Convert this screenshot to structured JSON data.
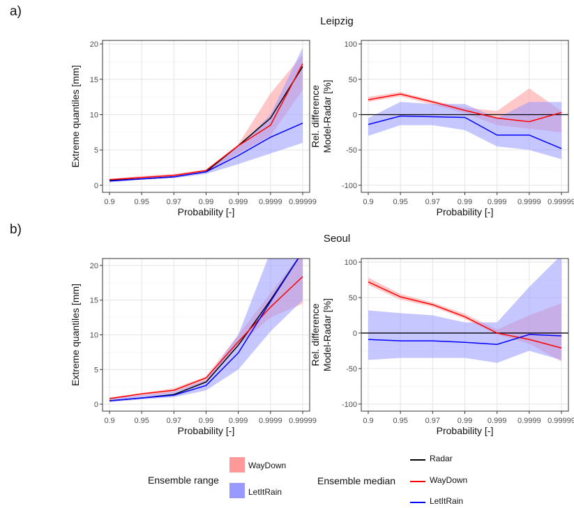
{
  "panel_labels": {
    "a": "a)",
    "b": "b)"
  },
  "titles": {
    "leipzig": "Leipzig",
    "seoul": "Seoul"
  },
  "colors": {
    "radar": "#000000",
    "waydown": "#ff0000",
    "letitrain": "#0000ff",
    "waydown_band": "#ff9999",
    "letitrain_band": "#9999ff",
    "grid": "#e6e6e6",
    "panel_border": "#333333"
  },
  "chart_data": [
    {
      "id": "leipzig_quantiles",
      "type": "line",
      "title": "Leipzig",
      "xlabel": "Probability [-]",
      "ylabel": "Extreme quantiles [mm]",
      "categories": [
        "0.9",
        "0.95",
        "0.97",
        "0.99",
        "0.999",
        "0.9999",
        "0.99999"
      ],
      "ylim": [
        -1,
        20.5
      ],
      "yticks": [
        0,
        5,
        10,
        15,
        20
      ],
      "grid": true,
      "bands": [
        {
          "name": "WayDown",
          "color": "#ff9999",
          "lower": [
            0.6,
            1.0,
            1.2,
            1.8,
            4.5,
            7.0,
            13.5
          ],
          "upper": [
            0.9,
            1.3,
            1.6,
            2.2,
            5.8,
            13.0,
            18.5
          ]
        },
        {
          "name": "LetItRain",
          "color": "#9999ff",
          "lower": [
            0.4,
            0.8,
            1.0,
            1.6,
            3.0,
            4.5,
            6.0
          ],
          "upper": [
            0.8,
            1.1,
            1.3,
            2.0,
            5.5,
            10.0,
            19.5
          ]
        }
      ],
      "series": [
        {
          "name": "Radar",
          "color": "#000000",
          "values": [
            0.7,
            0.9,
            1.2,
            1.9,
            5.6,
            9.5,
            16.8
          ]
        },
        {
          "name": "WayDown",
          "color": "#ff0000",
          "values": [
            0.8,
            1.1,
            1.4,
            2.1,
            5.6,
            8.5,
            17.2
          ]
        },
        {
          "name": "LetItRain",
          "color": "#0000ff",
          "values": [
            0.6,
            0.9,
            1.2,
            1.9,
            4.2,
            6.8,
            8.8
          ]
        }
      ]
    },
    {
      "id": "leipzig_reldiff",
      "type": "line",
      "xlabel": "Probability [-]",
      "ylabel": "Rel. difference\nModel-Radar [%]",
      "categories": [
        "0.9",
        "0.95",
        "0.97",
        "0.99",
        "0.999",
        "0.9999",
        "0.99999"
      ],
      "ylim": [
        -110,
        105
      ],
      "yticks": [
        -100,
        -50,
        0,
        50,
        100
      ],
      "grid": true,
      "hline": 0,
      "bands": [
        {
          "name": "WayDown",
          "color": "#ff9999",
          "lower": [
            18,
            26,
            14,
            2,
            -15,
            -20,
            -25
          ],
          "upper": [
            25,
            32,
            20,
            10,
            5,
            37,
            5
          ]
        },
        {
          "name": "LetItRain",
          "color": "#9999ff",
          "lower": [
            -30,
            -15,
            -15,
            -22,
            -45,
            -50,
            -63
          ],
          "upper": [
            -5,
            18,
            15,
            15,
            -5,
            18,
            18
          ]
        }
      ],
      "series": [
        {
          "name": "Radar",
          "color": "#000000",
          "values": [
            0,
            0,
            0,
            0,
            0,
            0,
            0
          ]
        },
        {
          "name": "WayDown",
          "color": "#ff0000",
          "values": [
            21,
            29,
            18,
            6,
            -5,
            -10,
            3
          ]
        },
        {
          "name": "LetItRain",
          "color": "#0000ff",
          "values": [
            -14,
            -2,
            -3,
            -4,
            -29,
            -29,
            -48
          ]
        }
      ]
    },
    {
      "id": "seoul_quantiles",
      "type": "line",
      "title": "Seoul",
      "xlabel": "Probability [-]",
      "ylabel": "Extreme quantiles [mm]",
      "categories": [
        "0.9",
        "0.95",
        "0.97",
        "0.99",
        "0.999",
        "0.9999",
        "0.99999"
      ],
      "ylim": [
        -1,
        21
      ],
      "yticks": [
        0,
        5,
        10,
        15,
        20
      ],
      "grid": true,
      "bands": [
        {
          "name": "WayDown",
          "color": "#ff9999",
          "lower": [
            0.7,
            1.2,
            1.7,
            3.2,
            8.5,
            12.5,
            14.5
          ],
          "upper": [
            1.0,
            1.6,
            2.3,
            4.0,
            10.0,
            16.0,
            22.0
          ]
        },
        {
          "name": "LetItRain",
          "color": "#9999ff",
          "lower": [
            0.3,
            0.7,
            1.0,
            2.0,
            5.0,
            10.5,
            15.0
          ],
          "upper": [
            0.8,
            1.3,
            1.8,
            3.5,
            10.0,
            22.0,
            22.0
          ]
        }
      ],
      "series": [
        {
          "name": "Radar",
          "color": "#000000",
          "values": [
            0.5,
            0.9,
            1.4,
            3.2,
            8.5,
            15.0,
            22.0
          ]
        },
        {
          "name": "WayDown",
          "color": "#ff0000",
          "values": [
            0.8,
            1.5,
            2.0,
            3.8,
            9.0,
            14.0,
            18.4
          ]
        },
        {
          "name": "LetItRain",
          "color": "#0000ff",
          "values": [
            0.5,
            0.9,
            1.3,
            2.7,
            7.4,
            14.8,
            22.0
          ]
        }
      ]
    },
    {
      "id": "seoul_reldiff",
      "type": "line",
      "xlabel": "Probability [-]",
      "ylabel": "Rel. difference\nModel-Radar [%]",
      "categories": [
        "0.9",
        "0.95",
        "0.97",
        "0.99",
        "0.999",
        "0.9999",
        "0.99999"
      ],
      "ylim": [
        -110,
        105
      ],
      "yticks": [
        -100,
        -50,
        0,
        50,
        100
      ],
      "grid": true,
      "hline": 0,
      "bands": [
        {
          "name": "WayDown",
          "color": "#ff9999",
          "lower": [
            68,
            47,
            37,
            20,
            -2,
            -15,
            -40
          ],
          "upper": [
            78,
            55,
            43,
            27,
            5,
            25,
            42
          ]
        },
        {
          "name": "LetItRain",
          "color": "#9999ff",
          "lower": [
            -38,
            -35,
            -35,
            -35,
            -42,
            -25,
            -38
          ],
          "upper": [
            32,
            28,
            25,
            15,
            15,
            65,
            110
          ]
        }
      ],
      "series": [
        {
          "name": "Radar",
          "color": "#000000",
          "values": [
            0,
            0,
            0,
            0,
            0,
            0,
            0
          ]
        },
        {
          "name": "WayDown",
          "color": "#ff0000",
          "values": [
            72,
            51,
            40,
            23,
            0,
            -9,
            -21
          ]
        },
        {
          "name": "LetItRain",
          "color": "#0000ff",
          "values": [
            -9,
            -11,
            -11,
            -13,
            -16,
            -2,
            -4
          ]
        }
      ]
    }
  ],
  "legend": {
    "range_title": "Ensemble range",
    "range_items": [
      {
        "label": "WayDown",
        "color": "#ff9999"
      },
      {
        "label": "LetItRain",
        "color": "#9999ff"
      }
    ],
    "median_title": "Ensemble median",
    "median_items": [
      {
        "label": "Radar",
        "color": "#000000"
      },
      {
        "label": "WayDown",
        "color": "#ff0000"
      },
      {
        "label": "LetItRain",
        "color": "#0000ff"
      }
    ]
  }
}
